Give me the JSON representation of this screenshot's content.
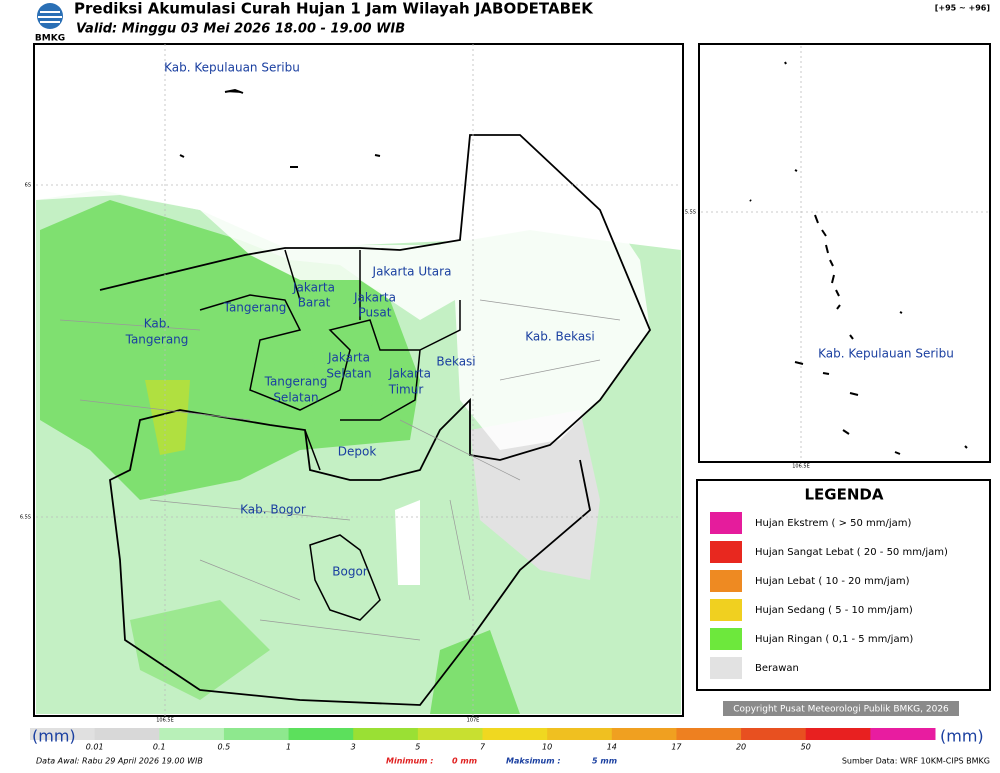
{
  "header": {
    "title": "Prediksi Akumulasi Curah Hujan 1 Jam Wilayah JABODETABEK",
    "range": "[+95 ~ +96]",
    "valid": "Valid: Minggu 03 Mei 2026 18.00 - 19.00 WIB",
    "logo": "BMKG"
  },
  "map": {
    "regions": [
      "Kab. Kepulauan Seribu",
      "Jakarta Utara",
      "Jakarta",
      "Barat",
      "Jakarta",
      "Pusat",
      "Tangerang",
      "Kab.",
      "Tangerang",
      "Jakarta",
      "Selatan",
      "Tangerang",
      "Selatan",
      "Jakarta",
      "Timur",
      "Bekasi",
      "Kab. Bekasi",
      "Depok",
      "Kab. Bogor",
      "Bogor"
    ],
    "lat_labels": [
      "6S",
      "6.5S"
    ],
    "lon_labels": [
      "106.5E",
      "107E"
    ]
  },
  "inset": {
    "region": "Kab. Kepulauan Seribu",
    "lat_label": "5.5S",
    "lon_label": "106.5E"
  },
  "legend": {
    "title": "LEGENDA",
    "items": [
      {
        "label": "Hujan Ekstrem ( > 50 mm/jam)",
        "color": "#e51c9c"
      },
      {
        "label": "Hujan Sangat Lebat ( 20 - 50 mm/jam)",
        "color": "#e8281f"
      },
      {
        "label": "Hujan Lebat ( 10 - 20 mm/jam)",
        "color": "#ee8a22"
      },
      {
        "label": "Hujan Sedang ( 5 - 10 mm/jam)",
        "color": "#f0d020"
      },
      {
        "label": "Hujan Ringan ( 0,1 - 5 mm/jam)",
        "color": "#6de83c"
      },
      {
        "label": "Berawan",
        "color": "#e2e2e2"
      }
    ]
  },
  "copyright": "Copyright Pusat Meteorologi Publik BMKG, 2026",
  "colorbar": {
    "unit": "(mm)",
    "labels": [
      "0.01",
      "0.1",
      "0.5",
      "1",
      "3",
      "5",
      "7",
      "10",
      "14",
      "17",
      "20",
      "50"
    ],
    "colors": [
      "#e0e0e0",
      "#d8d8d8",
      "#b8f0b8",
      "#8ee88e",
      "#5ce05c",
      "#9ae034",
      "#c8e030",
      "#f0d820",
      "#f0c020",
      "#f0a020",
      "#ee8020",
      "#e85020",
      "#e82020",
      "#e81ca0"
    ]
  },
  "footer": {
    "data_awal": "Data Awal: Rabu 29 April 2026 19.00 WIB",
    "min_label": "Minimum :",
    "min_value": "0 mm",
    "max_label": "Maksimum :",
    "max_value": "5 mm",
    "source": "Sumber Data: WRF 10KM-CIPS BMKG"
  }
}
